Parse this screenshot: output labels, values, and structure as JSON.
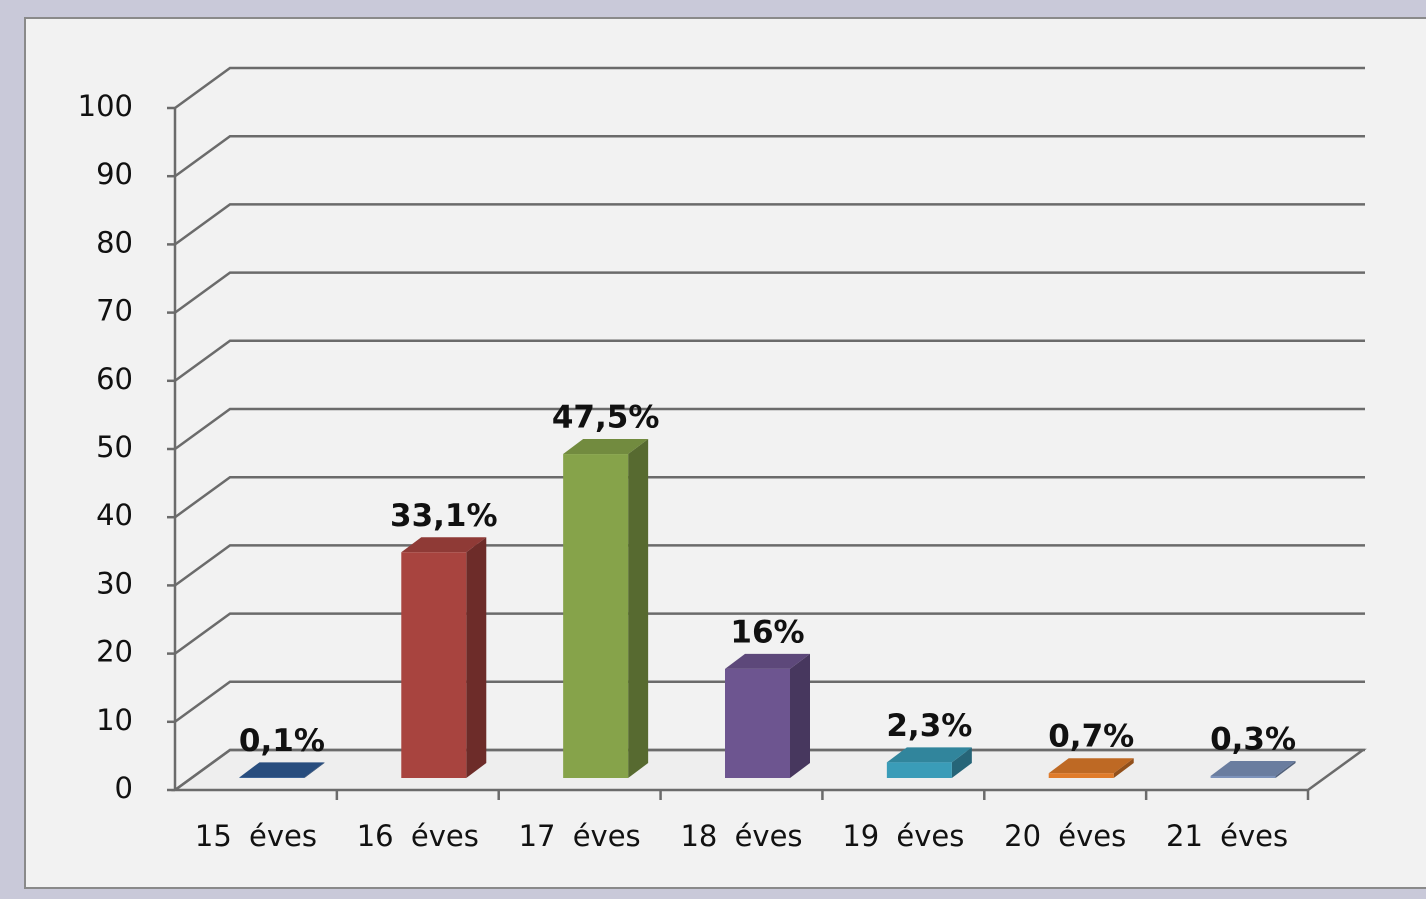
{
  "chart_data": {
    "type": "bar3d",
    "categories": [
      "15 éves",
      "16 éves",
      "17 éves",
      "18 éves",
      "19 éves",
      "20 éves",
      "21 éves"
    ],
    "values": [
      0.1,
      33.1,
      47.5,
      16,
      2.3,
      0.7,
      0.3
    ],
    "value_labels": [
      "0,1%",
      "33,1%",
      "47,5%",
      "16%",
      "2,3%",
      "0,7%",
      "0,3%"
    ],
    "colors": [
      "#2f5b94",
      "#a8443f",
      "#86a34a",
      "#6d5590",
      "#3a9cb8",
      "#e07b2a",
      "#7d93bb"
    ],
    "ylim": [
      0,
      100
    ],
    "yticks": [
      0,
      10,
      20,
      30,
      40,
      50,
      60,
      70,
      80,
      90,
      100
    ],
    "grid": true
  }
}
